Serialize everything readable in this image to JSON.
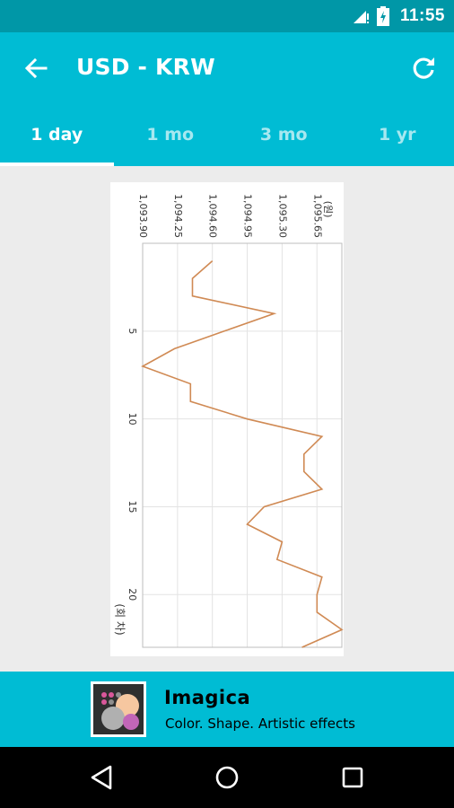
{
  "status_bar": {
    "time": "11:55"
  },
  "app_bar": {
    "title": "USD - KRW",
    "back_icon": "arrow-left-icon",
    "refresh_icon": "refresh-icon"
  },
  "tabs": [
    {
      "label": "1 day",
      "active": true
    },
    {
      "label": "1 mo",
      "active": false
    },
    {
      "label": "3 mo",
      "active": false
    },
    {
      "label": "1 yr",
      "active": false
    }
  ],
  "chart_data": {
    "type": "line",
    "orientation": "rotated-90-clockwise",
    "x": [
      1,
      2,
      3,
      4,
      5,
      6,
      7,
      8,
      9,
      10,
      11,
      12,
      13,
      14,
      15,
      16,
      17,
      18,
      19,
      20,
      21,
      22,
      23
    ],
    "values": [
      1094.6,
      1094.4,
      1094.4,
      1095.22,
      1094.72,
      1094.22,
      1093.9,
      1094.38,
      1094.38,
      1094.95,
      1095.7,
      1095.52,
      1095.52,
      1095.7,
      1095.12,
      1094.95,
      1095.3,
      1095.25,
      1095.7,
      1095.65,
      1095.65,
      1095.9,
      1095.5
    ],
    "ylabel": "(원)",
    "xlabel": "(회 차)",
    "y_ticks": [
      "1,093.90",
      "1,094.25",
      "1,094.60",
      "1,094.95",
      "1,095.30",
      "1,095.65"
    ],
    "x_ticks": [
      "5",
      "10",
      "15",
      "20"
    ],
    "ylim": [
      1093.9,
      1095.9
    ],
    "xlim": [
      0,
      23
    ],
    "grid": true,
    "line_color": "#d08a54"
  },
  "ad": {
    "name": "Imagica",
    "tagline": "Color. Shape. Artistic effects"
  }
}
